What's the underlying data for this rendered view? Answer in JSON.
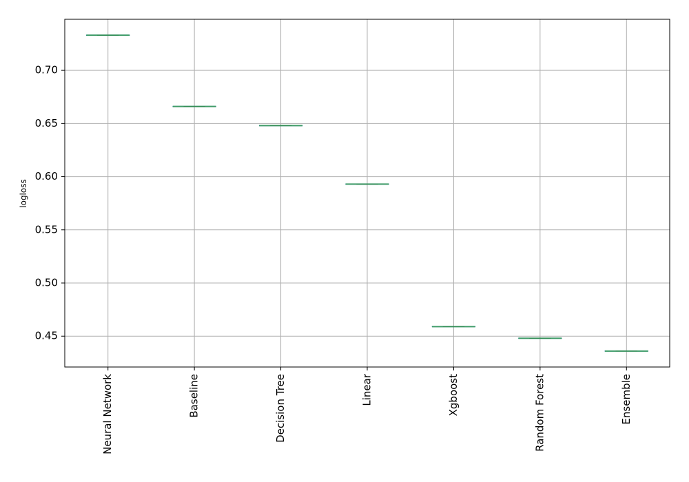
{
  "chart_data": {
    "type": "box",
    "categories": [
      "Neural Network",
      "Baseline",
      "Decision Tree",
      "Linear",
      "Xgboost",
      "Random Forest",
      "Ensemble"
    ],
    "values": [
      0.733,
      0.666,
      0.648,
      0.593,
      0.459,
      0.448,
      0.436
    ],
    "ylabel": "logloss",
    "yticks": [
      "0.45",
      "0.50",
      "0.55",
      "0.60",
      "0.65",
      "0.70"
    ],
    "ylim": [
      0.421,
      0.748
    ],
    "grid": true,
    "colors": {
      "median": "#3a9a5c",
      "grid": "#b0b0b0",
      "axis": "#000000"
    }
  }
}
